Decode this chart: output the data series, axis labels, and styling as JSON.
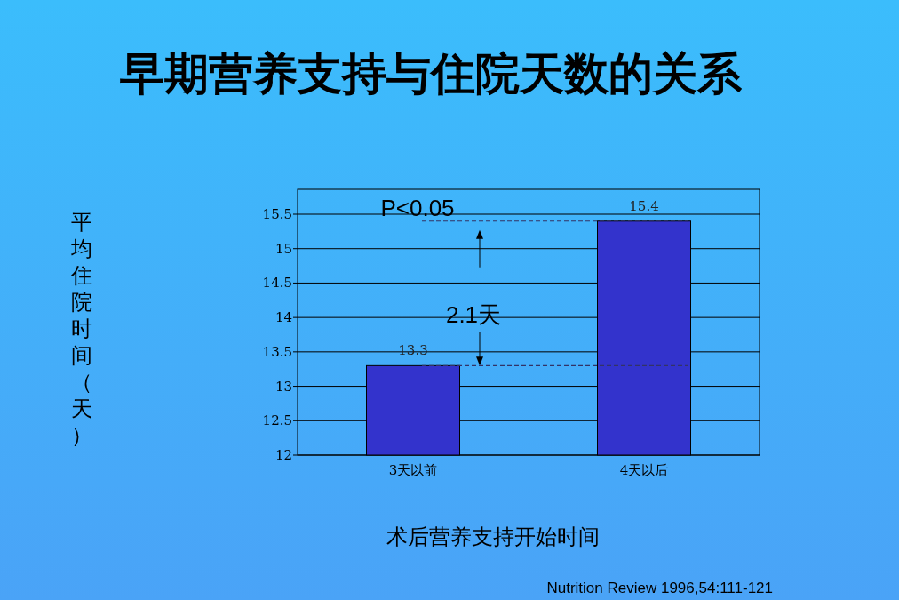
{
  "chart_data": {
    "type": "bar",
    "title": "早期营养支持与住院天数的关系",
    "xlabel": "术后营养支持开始时间",
    "ylabel": "平均住院时间（天）",
    "categories": [
      "3天以前",
      "4天以后"
    ],
    "values": [
      13.3,
      15.4
    ],
    "color": "#3333cc",
    "data_labels": true,
    "ylim": [
      12,
      15.5
    ],
    "yticks": [
      12,
      12.5,
      13,
      13.5,
      14,
      14.5,
      15,
      15.5
    ],
    "grid": "y",
    "ref_lines": [
      {
        "axis": "y",
        "value": 15.4,
        "line_style": "dashed",
        "color": "#333366"
      },
      {
        "axis": "y",
        "value": 13.3,
        "line_style": "dashed",
        "color": "#333366"
      }
    ],
    "annotations": [
      "P<0.05",
      {
        "text": "2.1天",
        "y": 13.3
      },
      "Nutrition Review 1996,54:111-121"
    ]
  }
}
